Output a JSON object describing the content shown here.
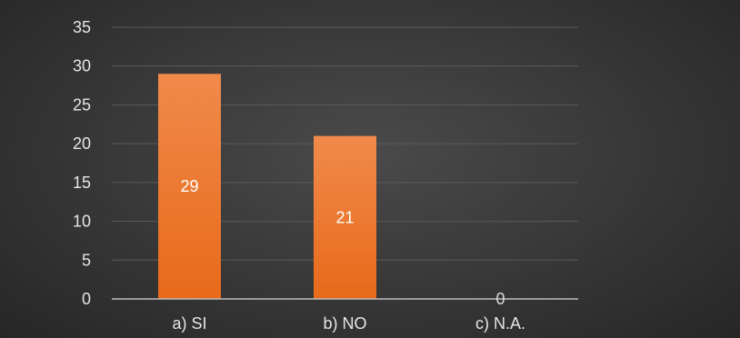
{
  "chart_data": {
    "type": "bar",
    "categories": [
      "a) SI",
      "b) NO",
      "c) N.A."
    ],
    "values": [
      29,
      21,
      0
    ],
    "data_labels": [
      "29",
      "21",
      "0"
    ],
    "ylim": [
      0,
      35
    ],
    "yticks": [
      "0",
      "5",
      "10",
      "15",
      "20",
      "25",
      "30",
      "35"
    ],
    "title": "",
    "xlabel": "",
    "ylabel": "",
    "grid": true,
    "legend": "none",
    "colors": {
      "bar_top": "#f08a4b",
      "bar_bottom": "#e86a1a",
      "label_on_bar": "#ffffff",
      "label_empty": "#d9d9d9",
      "text": "#e6e6e6"
    }
  }
}
